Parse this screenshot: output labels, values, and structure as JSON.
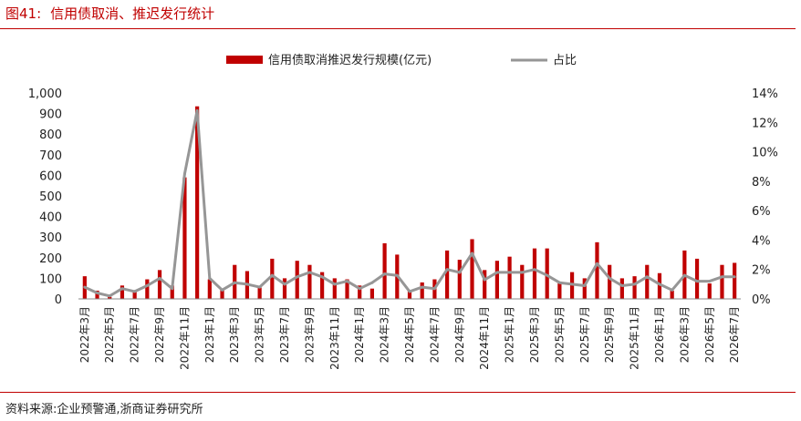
{
  "header": {
    "figure_label": "图41:",
    "title": "信用债取消、推迟发行统计"
  },
  "footer": {
    "source": "资料来源:企业预警通,浙商证券研究所"
  },
  "colors": {
    "accent": "#c00000",
    "bar": "#c00000",
    "line": "#969696"
  },
  "chart_data": {
    "type": "bar",
    "title": "信用债取消、推迟发行统计",
    "legend_position": "top",
    "grid": false,
    "categories": [
      "2022年3月",
      "2022年4月",
      "2022年5月",
      "2022年6月",
      "2022年7月",
      "2022年8月",
      "2022年9月",
      "2022年10月",
      "2022年11月",
      "2022年12月",
      "2023年1月",
      "2023年2月",
      "2023年3月",
      "2023年4月",
      "2023年5月",
      "2023年6月",
      "2023年7月",
      "2023年8月",
      "2023年9月",
      "2023年10月",
      "2023年11月",
      "2023年12月",
      "2024年1月",
      "2024年2月",
      "2024年3月",
      "2024年4月",
      "2024年5月",
      "2024年6月",
      "2024年7月",
      "2024年8月",
      "2024年9月",
      "2024年10月",
      "2024年11月",
      "2024年12月",
      "2025年1月",
      "2025年2月",
      "2025年3月",
      "2025年4月",
      "2025年5月",
      "2025年6月",
      "2025年7月",
      "2025年8月",
      "2025年9月",
      "2025年10月",
      "2025年11月",
      "2025年12月",
      "2026年1月",
      "2026年2月",
      "2026年3月",
      "2026年4月",
      "2026年5月",
      "2026年6月",
      "2026年7月"
    ],
    "x_tick_labels": [
      "2022年3月",
      "2022年5月",
      "2022年7月",
      "2022年9月",
      "2022年11月",
      "2023年1月",
      "2023年3月",
      "2023年5月",
      "2023年7月",
      "2023年9月",
      "2023年11月",
      "2024年1月",
      "2024年3月",
      "2024年5月",
      "2024年7月",
      "2024年9月",
      "2024年11月",
      "2025年1月",
      "2025年3月",
      "2025年5月",
      "2025年7月",
      "2025年9月",
      "2025年11月",
      "2026年1月",
      "2026年3月",
      "2026年5月",
      "2026年7月"
    ],
    "y_left": {
      "ylim": [
        0,
        1000
      ],
      "ticks": [
        "0",
        "100",
        "200",
        "300",
        "400",
        "500",
        "600",
        "700",
        "800",
        "900",
        "1,000"
      ]
    },
    "y_right": {
      "ylim": [
        0,
        14
      ],
      "ticks": [
        "0%",
        "2%",
        "4%",
        "6%",
        "8%",
        "10%",
        "12%",
        "14%"
      ]
    },
    "series": [
      {
        "name": "信用债取消推迟发行规模(亿元)",
        "type": "bar",
        "axis": "left",
        "values": [
          110,
          40,
          10,
          65,
          40,
          95,
          140,
          65,
          590,
          935,
          95,
          50,
          165,
          135,
          55,
          195,
          100,
          185,
          165,
          130,
          100,
          95,
          65,
          50,
          270,
          215,
          40,
          80,
          95,
          235,
          190,
          290,
          140,
          185,
          205,
          165,
          245,
          245,
          75,
          130,
          100,
          275,
          165,
          100,
          110,
          165,
          125,
          40,
          235,
          195,
          75,
          165,
          175
        ]
      },
      {
        "name": "占比",
        "type": "line",
        "axis": "right",
        "values": [
          0.8,
          0.4,
          0.2,
          0.7,
          0.5,
          0.9,
          1.4,
          0.7,
          8.5,
          12.8,
          1.4,
          0.6,
          1.1,
          1.0,
          0.8,
          1.6,
          1.0,
          1.5,
          1.8,
          1.5,
          1.0,
          1.2,
          0.7,
          1.1,
          1.7,
          1.6,
          0.5,
          0.8,
          0.7,
          2.0,
          1.8,
          3.1,
          1.3,
          1.8,
          1.8,
          1.8,
          2.0,
          1.6,
          1.1,
          1.0,
          0.9,
          2.4,
          1.4,
          0.9,
          1.0,
          1.5,
          1.0,
          0.6,
          1.6,
          1.2,
          1.2,
          1.5,
          1.5
        ]
      }
    ]
  }
}
